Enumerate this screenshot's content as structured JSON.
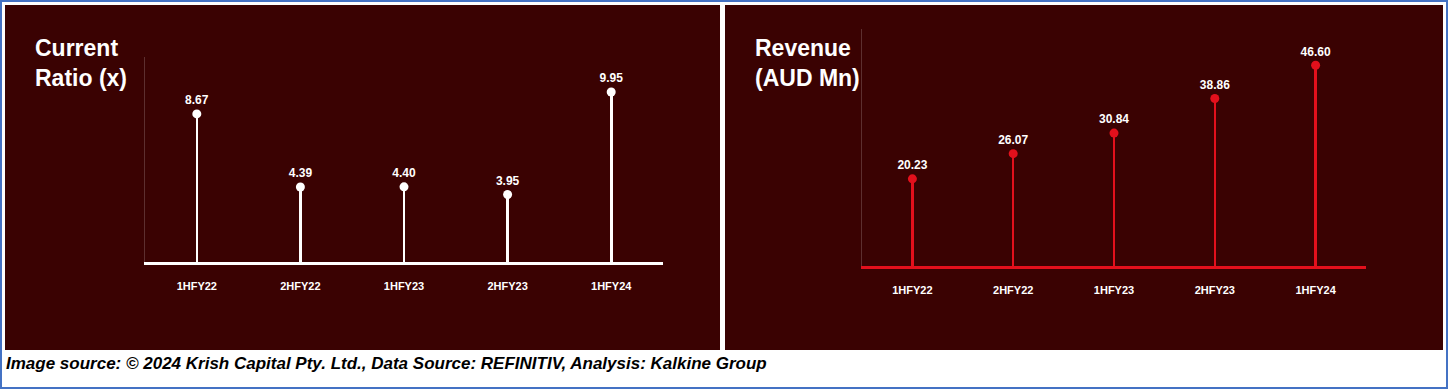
{
  "chart_data": [
    {
      "type": "lollipop",
      "title": "Current Ratio (x)",
      "categories": [
        "1HFY22",
        "2HFY22",
        "1HFY23",
        "2HFY23",
        "1HFY24"
      ],
      "values": [
        8.67,
        4.39,
        4.4,
        3.95,
        9.95
      ],
      "value_labels": [
        "8.67",
        "4.39",
        "4.40",
        "3.95",
        "9.95"
      ],
      "color": "#ffffff",
      "ylim": [
        0,
        12
      ],
      "yticks": [
        0
      ],
      "grid": false,
      "data_labels": true,
      "tick_labels": "x"
    },
    {
      "type": "lollipop",
      "title": "Revenue (AUD Mn)",
      "categories": [
        "1HFY22",
        "2HFY22",
        "1HFY23",
        "2HFY23",
        "1HFY24"
      ],
      "values": [
        20.23,
        26.07,
        30.84,
        38.86,
        46.6
      ],
      "value_labels": [
        "20.23",
        "26.07",
        "30.84",
        "38.86",
        "46.60"
      ],
      "color": "#e3101c",
      "ylim": [
        0,
        55
      ],
      "yticks": [
        0
      ],
      "grid": false,
      "data_labels": true,
      "tick_labels": "x"
    }
  ],
  "source": "Image source: © 2024 Krish Capital Pty. Ltd., Data Source: REFINITIV, Analysis: Kalkine Group"
}
